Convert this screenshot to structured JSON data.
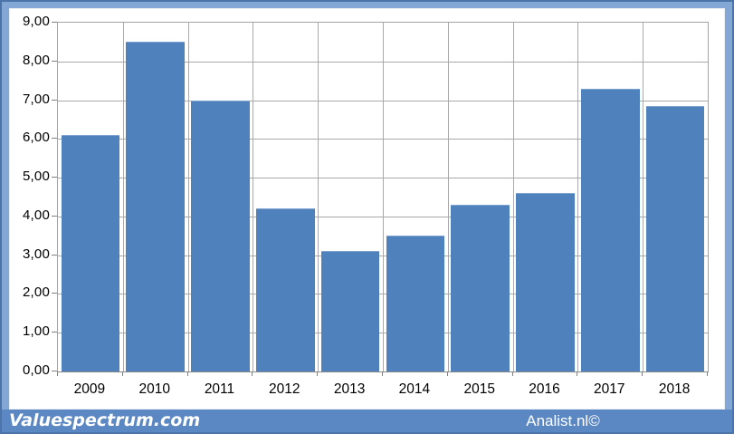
{
  "branding": {
    "left_logo": "Valuespectrum.com",
    "right_credit": "Analist.nl©"
  },
  "chart_data": {
    "type": "bar",
    "title": "",
    "xlabel": "",
    "ylabel": "",
    "categories": [
      "2009",
      "2010",
      "2011",
      "2012",
      "2013",
      "2014",
      "2015",
      "2016",
      "2017",
      "2018"
    ],
    "values": [
      6.1,
      8.5,
      7.0,
      4.2,
      3.1,
      3.5,
      4.3,
      4.6,
      7.3,
      6.85
    ],
    "ylim": [
      0,
      9
    ],
    "ytick_step": 1,
    "ytick_labels": [
      "0,00",
      "1,00",
      "2,00",
      "3,00",
      "4,00",
      "5,00",
      "6,00",
      "7,00",
      "8,00",
      "9,00"
    ],
    "grid": "both",
    "legend": "none",
    "bar_color": "#4f81bd",
    "gridline_color": "#a9a9a9",
    "frame_color": "#84a8d6",
    "footer_color": "#5b87c3"
  }
}
